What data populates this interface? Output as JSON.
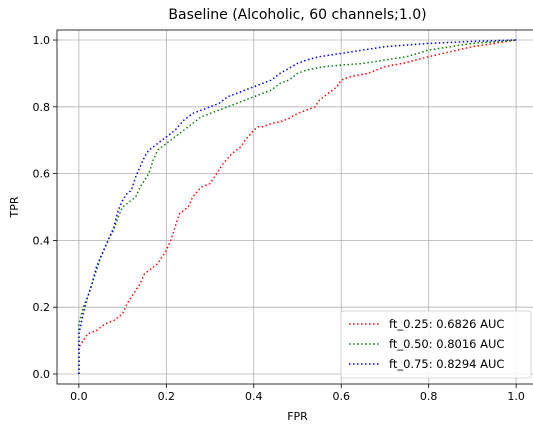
{
  "chart_data": {
    "type": "line",
    "title": "Baseline (Alcoholic, 60 channels;1.0)",
    "xlabel": "FPR",
    "ylabel": "TPR",
    "xlim": [
      -0.05,
      1.05
    ],
    "ylim": [
      -0.03,
      1.03
    ],
    "xticks": [
      "0.0",
      "0.2",
      "0.4",
      "0.6",
      "0.8",
      "1.0"
    ],
    "yticks": [
      "0.0",
      "0.2",
      "0.4",
      "0.6",
      "0.8",
      "1.0"
    ],
    "grid": true,
    "legend_position": "lower-right",
    "series": [
      {
        "name": "ft_0.25: 0.6826 AUC",
        "color": "#ff0000",
        "style": "dotted",
        "x": [
          0.0,
          0.0,
          0.01,
          0.02,
          0.04,
          0.06,
          0.08,
          0.1,
          0.11,
          0.12,
          0.13,
          0.14,
          0.15,
          0.16,
          0.18,
          0.19,
          0.2,
          0.21,
          0.22,
          0.23,
          0.25,
          0.26,
          0.28,
          0.3,
          0.31,
          0.32,
          0.33,
          0.35,
          0.37,
          0.38,
          0.4,
          0.41,
          0.42,
          0.44,
          0.46,
          0.48,
          0.5,
          0.52,
          0.54,
          0.55,
          0.56,
          0.58,
          0.59,
          0.6,
          0.62,
          0.64,
          0.66,
          0.7,
          0.74,
          0.8,
          0.85,
          0.9,
          0.95,
          1.0
        ],
        "y": [
          0.0,
          0.08,
          0.1,
          0.12,
          0.13,
          0.15,
          0.16,
          0.18,
          0.21,
          0.23,
          0.25,
          0.27,
          0.3,
          0.31,
          0.33,
          0.35,
          0.37,
          0.4,
          0.44,
          0.48,
          0.5,
          0.53,
          0.56,
          0.57,
          0.59,
          0.61,
          0.63,
          0.66,
          0.68,
          0.7,
          0.73,
          0.74,
          0.74,
          0.75,
          0.755,
          0.765,
          0.78,
          0.79,
          0.8,
          0.82,
          0.83,
          0.85,
          0.86,
          0.88,
          0.89,
          0.895,
          0.9,
          0.92,
          0.93,
          0.95,
          0.965,
          0.98,
          0.99,
          1.0
        ]
      },
      {
        "name": "ft_0.50: 0.8016 AUC",
        "color": "#008000",
        "style": "dotted",
        "x": [
          0.0,
          0.0,
          0.01,
          0.02,
          0.03,
          0.04,
          0.05,
          0.06,
          0.07,
          0.08,
          0.09,
          0.1,
          0.11,
          0.12,
          0.13,
          0.14,
          0.15,
          0.16,
          0.17,
          0.18,
          0.2,
          0.22,
          0.24,
          0.26,
          0.28,
          0.3,
          0.32,
          0.34,
          0.36,
          0.38,
          0.4,
          0.42,
          0.44,
          0.46,
          0.48,
          0.5,
          0.52,
          0.54,
          0.56,
          0.6,
          0.65,
          0.7,
          0.75,
          0.8,
          0.85,
          0.9,
          0.95,
          1.0
        ],
        "y": [
          0.0,
          0.15,
          0.2,
          0.23,
          0.27,
          0.31,
          0.35,
          0.38,
          0.41,
          0.43,
          0.47,
          0.5,
          0.51,
          0.52,
          0.53,
          0.56,
          0.58,
          0.6,
          0.64,
          0.67,
          0.69,
          0.71,
          0.73,
          0.75,
          0.77,
          0.78,
          0.79,
          0.8,
          0.81,
          0.82,
          0.83,
          0.84,
          0.85,
          0.87,
          0.88,
          0.9,
          0.91,
          0.915,
          0.92,
          0.925,
          0.93,
          0.94,
          0.95,
          0.97,
          0.98,
          0.99,
          0.995,
          1.0
        ]
      },
      {
        "name": "ft_0.75: 0.8294 AUC",
        "color": "#0000ff",
        "style": "dotted",
        "x": [
          0.0,
          0.0,
          0.01,
          0.02,
          0.03,
          0.04,
          0.05,
          0.06,
          0.07,
          0.08,
          0.09,
          0.1,
          0.11,
          0.12,
          0.13,
          0.14,
          0.15,
          0.16,
          0.17,
          0.18,
          0.2,
          0.22,
          0.24,
          0.26,
          0.28,
          0.3,
          0.32,
          0.34,
          0.36,
          0.38,
          0.4,
          0.42,
          0.44,
          0.46,
          0.48,
          0.5,
          0.52,
          0.55,
          0.6,
          0.65,
          0.7,
          0.75,
          0.8,
          0.85,
          0.9,
          0.95,
          1.0
        ],
        "y": [
          0.0,
          0.12,
          0.18,
          0.23,
          0.27,
          0.32,
          0.35,
          0.38,
          0.41,
          0.44,
          0.49,
          0.52,
          0.54,
          0.55,
          0.59,
          0.62,
          0.65,
          0.67,
          0.68,
          0.69,
          0.71,
          0.73,
          0.76,
          0.78,
          0.79,
          0.8,
          0.81,
          0.83,
          0.84,
          0.85,
          0.86,
          0.87,
          0.88,
          0.9,
          0.915,
          0.93,
          0.94,
          0.95,
          0.96,
          0.97,
          0.98,
          0.985,
          0.99,
          0.993,
          0.996,
          0.998,
          1.0
        ]
      }
    ]
  }
}
